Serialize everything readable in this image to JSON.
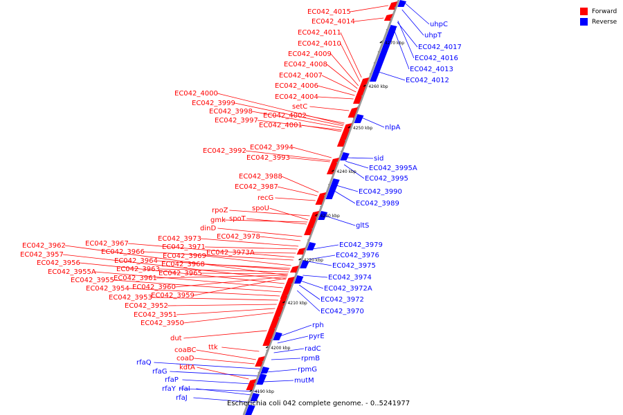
{
  "colors": {
    "forward": "#ff0000",
    "reverse": "#0000ff",
    "axis": "#9a9a9a",
    "tick": "#000000"
  },
  "legend": {
    "forward_label": "Forward",
    "reverse_label": "Reverse"
  },
  "caption": "Escherichia coli 042 complete genome. - 0..5241977",
  "axis_ticks": [
    "4190 kbp",
    "4200 kbp",
    "4210 kbp",
    "4220 kbp",
    "4230 kbp",
    "4240 kbp",
    "4250 kbp",
    "4260 kbp",
    "4270 kbp"
  ],
  "forward_genes": [
    "EC042_4015",
    "EC042_4014",
    "EC042_4011",
    "EC042_4010",
    "EC042_4009",
    "EC042_4008",
    "EC042_4007",
    "EC042_4006",
    "EC042_4004",
    "setC",
    "EC042_4000",
    "EC042_3999",
    "EC042_3998",
    "EC042_4002",
    "EC042_3997",
    "EC042_4001",
    "EC042_3994",
    "EC042_3992",
    "EC042_3993",
    "EC042_3988",
    "EC042_3987",
    "recG",
    "rpoZ",
    "spoU",
    "gmk",
    "spoT",
    "dinD",
    "EC042_3978",
    "EC042_3973",
    "EC042_3967",
    "EC042_3962",
    "EC042_3971",
    "EC042_3966",
    "EC042_3957",
    "EC042_3973A",
    "EC042_3969",
    "EC042_3964",
    "EC042_3956",
    "EC042_3968",
    "EC042_3963",
    "EC042_3955A",
    "EC042_3965",
    "EC042_3961",
    "EC042_3955",
    "EC042_3960",
    "EC042_3954",
    "EC042_3959",
    "EC042_3953",
    "EC042_3952",
    "EC042_3951",
    "EC042_3950",
    "dut",
    "ttk",
    "coaBC",
    "coaD",
    "kdtA"
  ],
  "reverse_genes": [
    "uhpC",
    "uhpT",
    "EC042_4017",
    "EC042_4016",
    "EC042_4013",
    "EC042_4012",
    "nlpA",
    "sid",
    "EC042_3995A",
    "EC042_3995",
    "EC042_3990",
    "EC042_3989",
    "gltS",
    "EC042_3979",
    "EC042_3976",
    "EC042_3975",
    "EC042_3974",
    "EC042_3972A",
    "EC042_3972",
    "EC042_3970",
    "rph",
    "pyrE",
    "radC",
    "rpmB",
    "rpmG",
    "mutM",
    "rfaQ",
    "rfaG",
    "rfaP",
    "rfaY",
    "rfaI",
    "rfaJ"
  ]
}
